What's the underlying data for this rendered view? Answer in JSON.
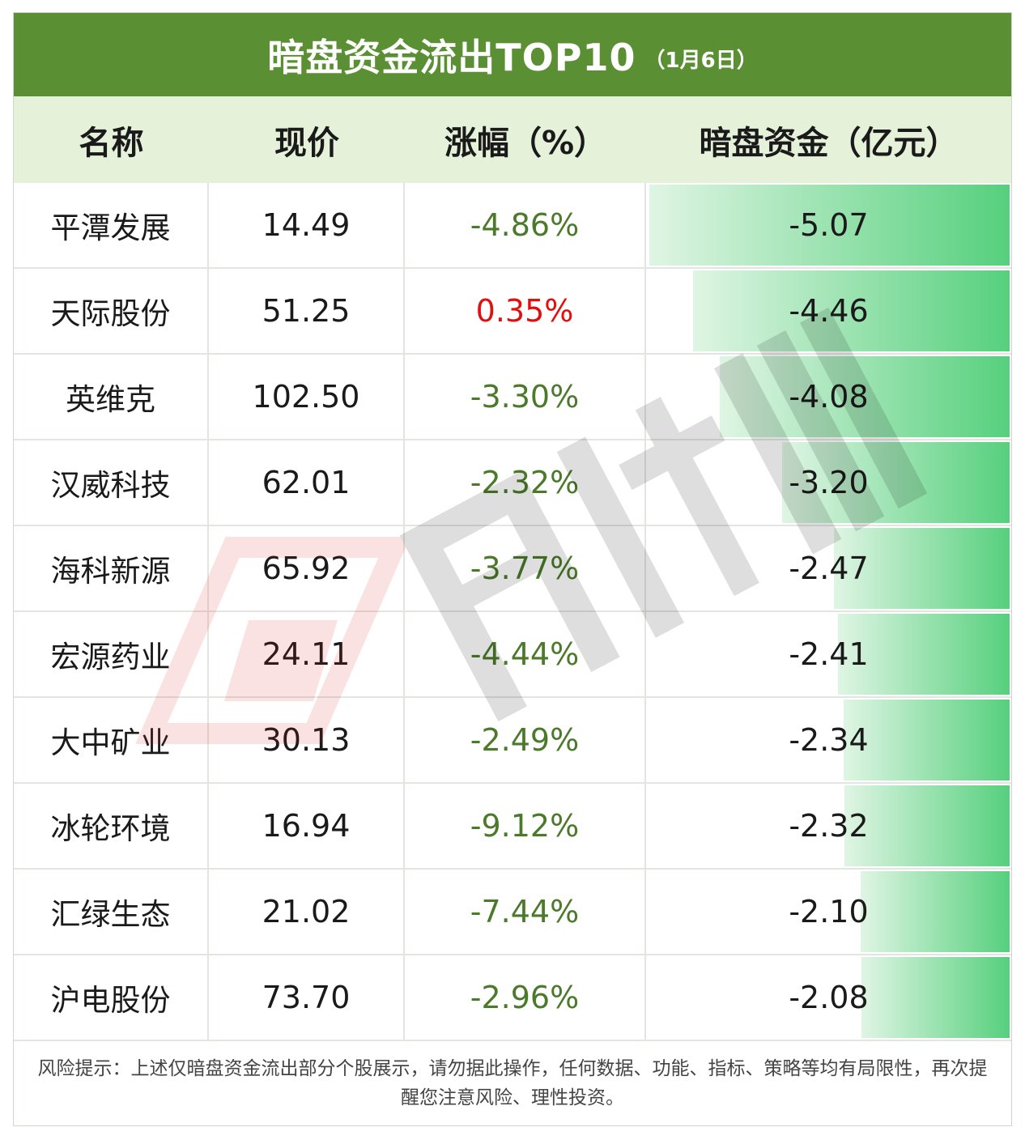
{
  "title": {
    "main": "暗盘资金流出TOP10",
    "date": "（1月6日）"
  },
  "header": {
    "name": "名称",
    "price": "现价",
    "change": "涨幅（%）",
    "fund": "暗盘资金（亿元）"
  },
  "colors": {
    "title_bg": "#5b8f33",
    "header_bg": "#e6f1da",
    "negative": "#4a7a2a",
    "positive": "#e01010",
    "bar": "#56d07d"
  },
  "rows": [
    {
      "name": "平潭发展",
      "price": "14.49",
      "change": "-4.86%",
      "fund": "-5.07",
      "fund_value": -5.07
    },
    {
      "name": "天际股份",
      "price": "51.25",
      "change": "0.35%",
      "fund": "-4.46",
      "fund_value": -4.46
    },
    {
      "name": "英维克",
      "price": "102.50",
      "change": "-3.30%",
      "fund": "-4.08",
      "fund_value": -4.08
    },
    {
      "name": "汉威科技",
      "price": "62.01",
      "change": "-2.32%",
      "fund": "-3.20",
      "fund_value": -3.2
    },
    {
      "name": "海科新源",
      "price": "65.92",
      "change": "-3.77%",
      "fund": "-2.47",
      "fund_value": -2.47
    },
    {
      "name": "宏源药业",
      "price": "24.11",
      "change": "-4.44%",
      "fund": "-2.41",
      "fund_value": -2.41
    },
    {
      "name": "大中矿业",
      "price": "30.13",
      "change": "-2.49%",
      "fund": "-2.34",
      "fund_value": -2.34
    },
    {
      "name": "冰轮环境",
      "price": "16.94",
      "change": "-9.12%",
      "fund": "-2.32",
      "fund_value": -2.32
    },
    {
      "name": "汇绿生态",
      "price": "21.02",
      "change": "-7.44%",
      "fund": "-2.10",
      "fund_value": -2.1
    },
    {
      "name": "沪电股份",
      "price": "73.70",
      "change": "-2.96%",
      "fund": "-2.08",
      "fund_value": -2.08
    }
  ],
  "footer": "风险提示：上述仅暗盘资金流出部分个股展示，请勿据此操作，任何数据、功能、指标、策略等均有局限性，再次提醒您注意风险、理性投资。",
  "watermark_icon": "tonghuashun-logo-watermark"
}
